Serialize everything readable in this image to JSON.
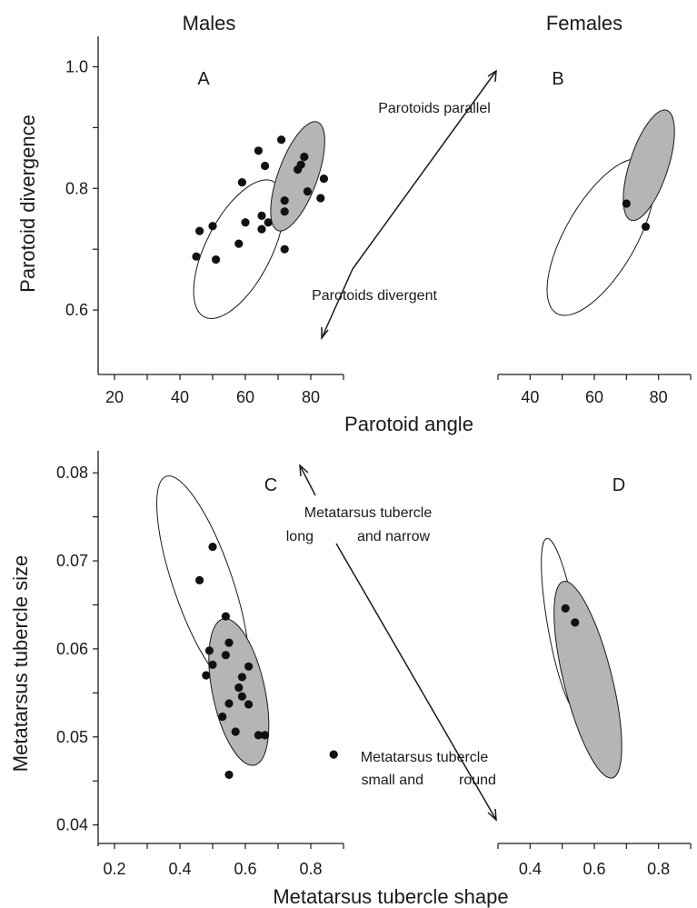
{
  "columns": {
    "left": "Males",
    "right": "Females"
  },
  "chart_data": [
    {
      "panel": "A",
      "type": "scatter",
      "xlabel": "",
      "ylabel": "Parotoid divergence",
      "xlim": [
        15,
        90
      ],
      "ylim": [
        0.5,
        1.05
      ],
      "xticks": [
        20,
        40,
        60,
        80
      ],
      "xminor": [
        30,
        50,
        70,
        90
      ],
      "yticks": [
        0.6,
        0.8,
        1.0
      ],
      "ytick_labels": [
        "0.6",
        "0.8",
        "1.0"
      ],
      "yminor": [
        0.7,
        0.9
      ],
      "points": [
        {
          "x": 45,
          "y": 0.688
        },
        {
          "x": 46,
          "y": 0.73
        },
        {
          "x": 50,
          "y": 0.738
        },
        {
          "x": 51,
          "y": 0.683
        },
        {
          "x": 58,
          "y": 0.709
        },
        {
          "x": 59,
          "y": 0.81
        },
        {
          "x": 60,
          "y": 0.744
        },
        {
          "x": 64,
          "y": 0.862
        },
        {
          "x": 65,
          "y": 0.755
        },
        {
          "x": 65,
          "y": 0.733
        },
        {
          "x": 66,
          "y": 0.837
        },
        {
          "x": 67,
          "y": 0.744
        },
        {
          "x": 71,
          "y": 0.88
        },
        {
          "x": 72,
          "y": 0.78
        },
        {
          "x": 72,
          "y": 0.762
        },
        {
          "x": 72,
          "y": 0.7
        },
        {
          "x": 76,
          "y": 0.831
        },
        {
          "x": 77,
          "y": 0.839
        },
        {
          "x": 78,
          "y": 0.852
        },
        {
          "x": 79,
          "y": 0.795
        },
        {
          "x": 83,
          "y": 0.784
        },
        {
          "x": 84,
          "y": 0.816
        }
      ],
      "ellipses": [
        {
          "group": "open",
          "cx": 58,
          "cy": 0.7,
          "rx": 10,
          "ry": 0.125,
          "angle_deg": 27
        },
        {
          "group": "filled",
          "cx": 76,
          "cy": 0.82,
          "rx": 6,
          "ry": 0.095,
          "angle_deg": 20
        }
      ]
    },
    {
      "panel": "B",
      "type": "scatter",
      "xlabel": "Parotoid angle",
      "ylabel": "",
      "xlim": [
        30,
        90
      ],
      "ylim": [
        0.5,
        1.05
      ],
      "xticks": [
        40,
        60,
        80
      ],
      "xminor": [
        30,
        50,
        70,
        90
      ],
      "yticks": [],
      "points": [
        {
          "x": 70,
          "y": 0.775
        },
        {
          "x": 76,
          "y": 0.737
        }
      ],
      "ellipses": [
        {
          "group": "open",
          "cx": 62,
          "cy": 0.72,
          "rx": 11,
          "ry": 0.145,
          "angle_deg": 30
        },
        {
          "group": "filled",
          "cx": 77,
          "cy": 0.838,
          "rx": 6,
          "ry": 0.095,
          "angle_deg": 18
        }
      ]
    },
    {
      "panel": "C",
      "type": "scatter",
      "xlabel": "",
      "ylabel": "Metatarsus tubercle size",
      "xlim": [
        0.15,
        0.9
      ],
      "ylim": [
        0.038,
        0.0825
      ],
      "xticks": [
        0.2,
        0.4,
        0.6,
        0.8
      ],
      "xtick_labels": [
        "0.2",
        "0.4",
        "0.6",
        "0.8"
      ],
      "xminor": [
        0.3,
        0.5,
        0.7,
        0.9
      ],
      "yticks": [
        0.04,
        0.05,
        0.06,
        0.07,
        0.08
      ],
      "ytick_labels": [
        "0.04",
        "0.05",
        "0.06",
        "0.07",
        "0.08"
      ],
      "yminor": [
        0.045,
        0.055,
        0.065,
        0.075
      ],
      "points": [
        {
          "x": 0.46,
          "y": 0.0678
        },
        {
          "x": 0.5,
          "y": 0.0716
        },
        {
          "x": 0.54,
          "y": 0.0637
        },
        {
          "x": 0.49,
          "y": 0.0598
        },
        {
          "x": 0.5,
          "y": 0.0582
        },
        {
          "x": 0.48,
          "y": 0.057
        },
        {
          "x": 0.54,
          "y": 0.0593
        },
        {
          "x": 0.55,
          "y": 0.0607
        },
        {
          "x": 0.58,
          "y": 0.0556
        },
        {
          "x": 0.59,
          "y": 0.0568
        },
        {
          "x": 0.61,
          "y": 0.058
        },
        {
          "x": 0.59,
          "y": 0.0546
        },
        {
          "x": 0.61,
          "y": 0.0537
        },
        {
          "x": 0.55,
          "y": 0.0538
        },
        {
          "x": 0.53,
          "y": 0.0523
        },
        {
          "x": 0.57,
          "y": 0.0506
        },
        {
          "x": 0.64,
          "y": 0.0502
        },
        {
          "x": 0.66,
          "y": 0.0502
        },
        {
          "x": 0.55,
          "y": 0.0457
        },
        {
          "x": 0.87,
          "y": 0.048
        }
      ],
      "ellipses": [
        {
          "group": "open",
          "cx": 0.47,
          "cy": 0.0675,
          "rx": 0.09,
          "ry": 0.0128,
          "angle_deg": -19
        },
        {
          "group": "filled",
          "cx": 0.58,
          "cy": 0.0551,
          "rx": 0.08,
          "ry": 0.0085,
          "angle_deg": -12
        }
      ]
    },
    {
      "panel": "D",
      "type": "scatter",
      "xlabel": "Metatarsus tubercle shape",
      "ylabel": "",
      "xlim": [
        0.3,
        0.9
      ],
      "ylim": [
        0.038,
        0.0825
      ],
      "xticks": [
        0.4,
        0.6,
        0.8
      ],
      "xtick_labels": [
        "0.4",
        "0.6",
        "0.8"
      ],
      "xminor": [
        0.3,
        0.5,
        0.7,
        0.9
      ],
      "yticks": [],
      "points": [
        {
          "x": 0.51,
          "y": 0.0646
        },
        {
          "x": 0.54,
          "y": 0.063
        }
      ],
      "ellipses": [
        {
          "group": "open",
          "cx": 0.5,
          "cy": 0.0627,
          "rx": 0.045,
          "ry": 0.01,
          "angle_deg": -10
        },
        {
          "group": "filled",
          "cx": 0.58,
          "cy": 0.0565,
          "rx": 0.075,
          "ry": 0.0115,
          "angle_deg": -14
        }
      ]
    }
  ],
  "annotations": {
    "parotoids_parallel": "Parotoids parallel",
    "parotoids_divergent": "Parotoids divergent",
    "mt_long_a": "Metatarsus tubercle",
    "mt_long_b1": "long",
    "mt_long_b2": "and narrow",
    "mt_small_a": "Metatarsus tubercle",
    "mt_small_b1": "small and",
    "mt_small_b2": "round"
  }
}
